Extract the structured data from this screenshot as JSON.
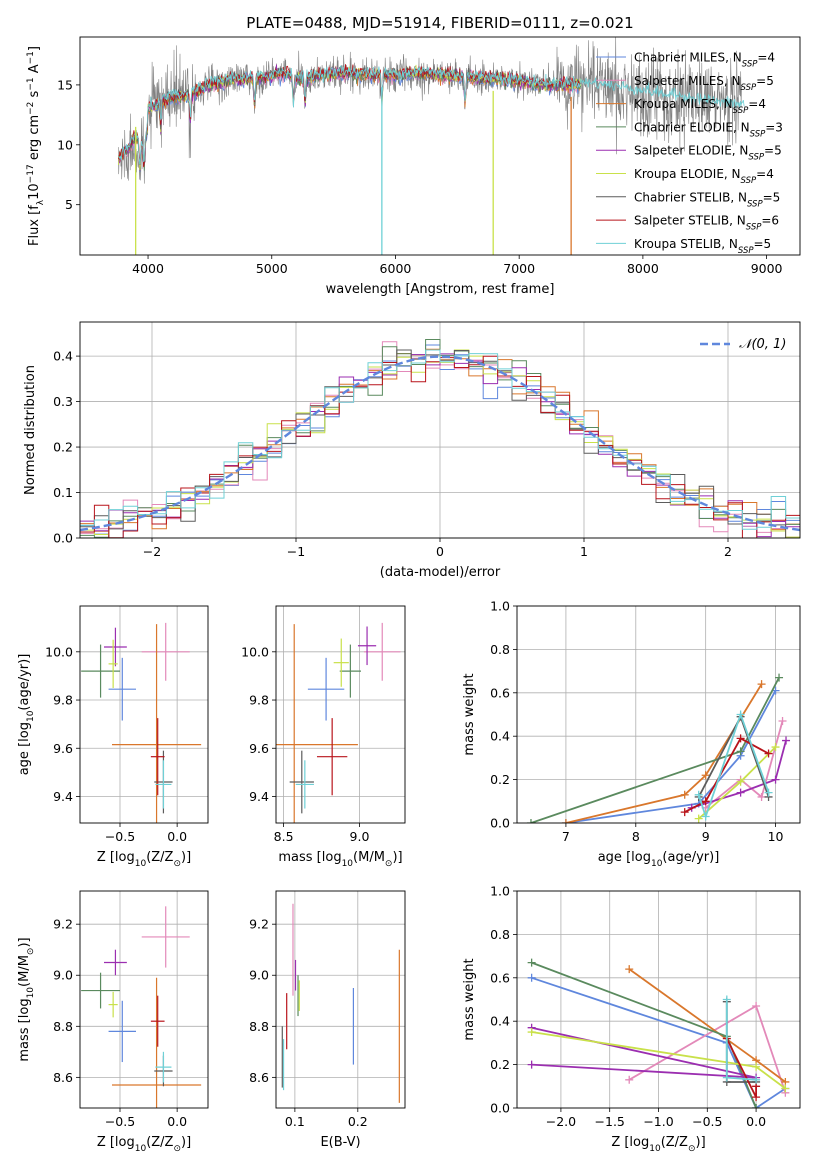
{
  "colors": {
    "chabrier_miles": "#5f87dd",
    "salpeter_miles": "#e389b9",
    "kroupa_miles": "#d9772c",
    "chabrier_elodie": "#5a8a5e",
    "salpeter_elodie": "#9b2eb0",
    "kroupa_elodie": "#c9e14a",
    "chabrier_stelib": "#5c5c5c",
    "salpeter_stelib": "#b8141b",
    "kroupa_stelib": "#6fd0d6",
    "grid": "#b0b0b0",
    "normal_curve": "#5f87dd"
  },
  "chart_data": [
    {
      "id": "spectrum",
      "type": "line",
      "title": "PLATE=0488, MJD=51914, FIBERID=0111, z=0.021",
      "xlabel": "wavelength [Angstrom, rest frame]",
      "ylabel": "Flux [f$_\\lambda$10$^{-17}$ erg cm$^{-2}$ s$^{-1}$ A$^{-1}$]",
      "ylabel_parts": [
        "Flux [f",
        "λ",
        "10",
        "−17",
        " erg cm",
        "−2",
        " s",
        "−1",
        " A",
        "−1",
        "]"
      ],
      "xlim": [
        3450,
        9270
      ],
      "ylim": [
        0.8,
        19.0
      ],
      "xticks": [
        4000,
        5000,
        6000,
        7000,
        8000,
        9000
      ],
      "yticks": [
        5,
        10,
        15
      ],
      "grid": false,
      "legend_position": "top-right",
      "series": [
        {
          "name": "Chabrier MILES, N",
          "sub": "SSP",
          "suffix": "=4",
          "color_key": "chabrier_miles"
        },
        {
          "name": "Salpeter MILES, N",
          "sub": "SSP",
          "suffix": "=5",
          "color_key": "salpeter_miles"
        },
        {
          "name": "Kroupa MILES, N",
          "sub": "SSP",
          "suffix": "=4",
          "color_key": "kroupa_miles"
        },
        {
          "name": "Chabrier ELODIE, N",
          "sub": "SSP",
          "suffix": "=3",
          "color_key": "chabrier_elodie"
        },
        {
          "name": "Salpeter ELODIE, N",
          "sub": "SSP",
          "suffix": "=5",
          "color_key": "salpeter_elodie"
        },
        {
          "name": "Kroupa ELODIE, N",
          "sub": "SSP",
          "suffix": "=4",
          "color_key": "kroupa_elodie"
        },
        {
          "name": "Chabrier STELIB, N",
          "sub": "SSP",
          "suffix": "=5",
          "color_key": "chabrier_stelib"
        },
        {
          "name": "Salpeter STELIB, N",
          "sub": "SSP",
          "suffix": "=6",
          "color_key": "salpeter_stelib"
        },
        {
          "name": "Kroupa STELIB, N",
          "sub": "SSP",
          "suffix": "=5",
          "color_key": "kroupa_stelib"
        }
      ],
      "observed_envelope": [
        [
          3760,
          10.5
        ],
        [
          3800,
          11.0
        ],
        [
          3850,
          11.5
        ],
        [
          3900,
          12.5
        ],
        [
          3950,
          11.5
        ],
        [
          4000,
          13.0
        ],
        [
          4100,
          13.5
        ],
        [
          4200,
          14.0
        ],
        [
          4300,
          14.0
        ],
        [
          4400,
          14.5
        ],
        [
          4500,
          15.0
        ],
        [
          4700,
          15.5
        ],
        [
          4900,
          15.5
        ],
        [
          5100,
          16.0
        ],
        [
          5200,
          15.5
        ],
        [
          5400,
          15.8
        ],
        [
          5600,
          16.0
        ],
        [
          5800,
          15.8
        ],
        [
          6000,
          15.8
        ],
        [
          6200,
          16.0
        ],
        [
          6400,
          15.8
        ],
        [
          6600,
          15.6
        ],
        [
          6800,
          15.5
        ],
        [
          7000,
          15.3
        ],
        [
          7200,
          15.0
        ],
        [
          7400,
          15.0
        ],
        [
          7600,
          15.0
        ],
        [
          7800,
          14.7
        ],
        [
          8000,
          14.4
        ],
        [
          8200,
          14.0
        ],
        [
          8400,
          13.8
        ],
        [
          8600,
          13.4
        ],
        [
          8800,
          13.2
        ]
      ]
    },
    {
      "id": "residuals",
      "type": "line",
      "xlabel": "(data-model)/error",
      "ylabel": "Normed distribution",
      "xlim": [
        -2.5,
        2.5
      ],
      "ylim": [
        0.0,
        0.475
      ],
      "xticks": [
        -2,
        -1,
        0,
        1,
        2
      ],
      "yticks": [
        0.0,
        0.1,
        0.2,
        0.3,
        0.4
      ],
      "grid": true,
      "legend_position": "top-right",
      "legend_label": "𝒩(0, 1)",
      "bin_width": 0.1,
      "normal_curve": {
        "mean": 0,
        "sigma": 1
      }
    },
    {
      "id": "age_vs_Z",
      "type": "scatter",
      "xlabel": "Z [log$_{10}$(Z/Z$_\\odot$)]",
      "ylabel": "age  [log$_{10}$(age/yr)]",
      "xlim": [
        -0.85,
        0.27
      ],
      "ylim": [
        9.29,
        10.19
      ],
      "xticks": [
        -0.5,
        0.0
      ],
      "yticks": [
        9.4,
        9.6,
        9.8,
        10.0
      ],
      "grid": true,
      "points": [
        {
          "key": "chabrier_miles",
          "x": -0.48,
          "y": 9.845,
          "xerr": 0.12,
          "yerr": 0.13
        },
        {
          "key": "salpeter_miles",
          "x": -0.1,
          "y": 10.0,
          "xerr": 0.21,
          "yerr": 0.12
        },
        {
          "key": "kroupa_miles",
          "x": -0.18,
          "y": 9.615,
          "xerr": 0.39,
          "yerr": 0.5
        },
        {
          "key": "chabrier_elodie",
          "x": -0.67,
          "y": 9.92,
          "xerr": 0.17,
          "yerr": 0.11
        },
        {
          "key": "salpeter_elodie",
          "x": -0.54,
          "y": 10.02,
          "xerr": 0.1,
          "yerr": 0.08
        },
        {
          "key": "kroupa_elodie",
          "x": -0.56,
          "y": 9.95,
          "xerr": 0.04,
          "yerr": 0.1
        },
        {
          "key": "chabrier_stelib",
          "x": -0.12,
          "y": 9.46,
          "xerr": 0.08,
          "yerr": 0.13
        },
        {
          "key": "salpeter_stelib",
          "x": -0.17,
          "y": 9.565,
          "xerr": 0.06,
          "yerr": 0.16
        },
        {
          "key": "kroupa_stelib",
          "x": -0.12,
          "y": 9.45,
          "xerr": 0.07,
          "yerr": 0.1
        }
      ]
    },
    {
      "id": "age_vs_mass",
      "type": "scatter",
      "xlabel": "mass [log$_{10}$(M/M$_\\odot$)]",
      "ylabel": "",
      "xlim": [
        8.45,
        9.3
      ],
      "ylim": [
        9.29,
        10.19
      ],
      "xticks": [
        8.5,
        9.0
      ],
      "yticks": [
        9.4,
        9.6,
        9.8,
        10.0
      ],
      "grid": true,
      "points": [
        {
          "key": "chabrier_miles",
          "x": 8.78,
          "y": 9.845,
          "xerr": 0.12,
          "yerr": 0.13
        },
        {
          "key": "salpeter_miles",
          "x": 9.15,
          "y": 10.0,
          "xerr": 0.12,
          "yerr": 0.12
        },
        {
          "key": "kroupa_miles",
          "x": 8.57,
          "y": 9.615,
          "xerr": 0.42,
          "yerr": 0.5
        },
        {
          "key": "chabrier_elodie",
          "x": 8.94,
          "y": 9.92,
          "xerr": 0.07,
          "yerr": 0.11
        },
        {
          "key": "salpeter_elodie",
          "x": 9.05,
          "y": 10.025,
          "xerr": 0.06,
          "yerr": 0.08
        },
        {
          "key": "kroupa_elodie",
          "x": 8.88,
          "y": 9.955,
          "xerr": 0.05,
          "yerr": 0.1
        },
        {
          "key": "chabrier_stelib",
          "x": 8.62,
          "y": 9.46,
          "xerr": 0.08,
          "yerr": 0.13
        },
        {
          "key": "salpeter_stelib",
          "x": 8.82,
          "y": 9.565,
          "xerr": 0.1,
          "yerr": 0.16
        },
        {
          "key": "kroupa_stelib",
          "x": 8.64,
          "y": 9.45,
          "xerr": 0.06,
          "yerr": 0.1
        }
      ]
    },
    {
      "id": "weight_vs_age",
      "type": "line",
      "xlabel": "age  [log$_{10}$(age/yr)]",
      "ylabel": "mass weight",
      "xlim": [
        6.3,
        10.35
      ],
      "ylim": [
        0.0,
        1.0
      ],
      "xticks": [
        7,
        8,
        9,
        10
      ],
      "yticks": [
        0.0,
        0.2,
        0.4,
        0.6,
        0.8,
        1.0
      ],
      "grid": true,
      "series": [
        {
          "key": "chabrier_miles",
          "pts": [
            [
              7.0,
              0.0
            ],
            [
              8.9,
              0.09
            ],
            [
              9.5,
              0.31
            ],
            [
              10.0,
              0.61
            ]
          ]
        },
        {
          "key": "salpeter_miles",
          "pts": [
            [
              9.0,
              0.07
            ],
            [
              9.5,
              0.2
            ],
            [
              9.8,
              0.12
            ],
            [
              10.1,
              0.47
            ]
          ]
        },
        {
          "key": "kroupa_miles",
          "pts": [
            [
              7.0,
              0.0
            ],
            [
              8.7,
              0.13
            ],
            [
              9.0,
              0.22
            ],
            [
              9.8,
              0.64
            ]
          ]
        },
        {
          "key": "chabrier_elodie",
          "pts": [
            [
              6.5,
              0.0
            ],
            [
              9.5,
              0.33
            ],
            [
              10.05,
              0.67
            ]
          ]
        },
        {
          "key": "salpeter_elodie",
          "pts": [
            [
              8.8,
              0.07
            ],
            [
              9.5,
              0.14
            ],
            [
              10.0,
              0.2
            ],
            [
              10.15,
              0.38
            ]
          ]
        },
        {
          "key": "kroupa_elodie",
          "pts": [
            [
              8.9,
              0.02
            ],
            [
              9.5,
              0.19
            ],
            [
              10.0,
              0.35
            ]
          ]
        },
        {
          "key": "chabrier_stelib",
          "pts": [
            [
              8.9,
              0.12
            ],
            [
              9.5,
              0.49
            ],
            [
              9.9,
              0.12
            ]
          ]
        },
        {
          "key": "salpeter_stelib",
          "pts": [
            [
              8.7,
              0.05
            ],
            [
              9.0,
              0.1
            ],
            [
              9.5,
              0.39
            ],
            [
              9.9,
              0.32
            ]
          ]
        },
        {
          "key": "kroupa_stelib",
          "pts": [
            [
              8.9,
              0.13
            ],
            [
              9.0,
              0.03
            ],
            [
              9.5,
              0.5
            ],
            [
              9.9,
              0.14
            ]
          ]
        }
      ]
    },
    {
      "id": "mass_vs_Z",
      "type": "scatter",
      "xlabel": "Z [log$_{10}$(Z/Z$_\\odot$)]",
      "ylabel": "mass [log$_{10}$(M/M$_\\odot$)]",
      "xlim": [
        -0.85,
        0.27
      ],
      "ylim": [
        8.48,
        9.33
      ],
      "xticks": [
        -0.5,
        0.0
      ],
      "yticks": [
        8.6,
        8.8,
        9.0,
        9.2
      ],
      "grid": true,
      "points": [
        {
          "key": "chabrier_miles",
          "x": -0.48,
          "y": 8.78,
          "xerr": 0.12,
          "yerr": 0.12
        },
        {
          "key": "salpeter_miles",
          "x": -0.1,
          "y": 9.15,
          "xerr": 0.21,
          "yerr": 0.12
        },
        {
          "key": "kroupa_miles",
          "x": -0.18,
          "y": 8.57,
          "xerr": 0.39,
          "yerr": 0.42
        },
        {
          "key": "chabrier_elodie",
          "x": -0.67,
          "y": 8.94,
          "xerr": 0.17,
          "yerr": 0.07
        },
        {
          "key": "salpeter_elodie",
          "x": -0.54,
          "y": 9.05,
          "xerr": 0.1,
          "yerr": 0.05
        },
        {
          "key": "kroupa_elodie",
          "x": -0.56,
          "y": 8.885,
          "xerr": 0.04,
          "yerr": 0.05
        },
        {
          "key": "chabrier_stelib",
          "x": -0.12,
          "y": 8.625,
          "xerr": 0.08,
          "yerr": 0.06
        },
        {
          "key": "salpeter_stelib",
          "x": -0.17,
          "y": 8.82,
          "xerr": 0.06,
          "yerr": 0.1
        },
        {
          "key": "kroupa_stelib",
          "x": -0.12,
          "y": 8.64,
          "xerr": 0.07,
          "yerr": 0.06
        }
      ]
    },
    {
      "id": "mass_vs_ebv",
      "type": "scatter",
      "xlabel": "E(B-V)",
      "ylabel": "",
      "xlim": [
        0.07,
        0.275
      ],
      "ylim": [
        8.48,
        9.33
      ],
      "xticks": [
        0.1,
        0.2
      ],
      "yticks": [
        8.6,
        8.8,
        9.0,
        9.2
      ],
      "grid": true,
      "points": [
        {
          "key": "chabrier_miles",
          "x": 0.193,
          "y": 8.8,
          "xerr": 0.0,
          "yerr": 0.15
        },
        {
          "key": "salpeter_miles",
          "x": 0.097,
          "y": 9.1,
          "xerr": 0.0,
          "yerr": 0.18
        },
        {
          "key": "kroupa_miles",
          "x": 0.266,
          "y": 8.8,
          "xerr": 0.0,
          "yerr": 0.3
        },
        {
          "key": "chabrier_elodie",
          "x": 0.105,
          "y": 8.92,
          "xerr": 0.0,
          "yerr": 0.08
        },
        {
          "key": "salpeter_elodie",
          "x": 0.101,
          "y": 9.0,
          "xerr": 0.0,
          "yerr": 0.06
        },
        {
          "key": "kroupa_elodie",
          "x": 0.107,
          "y": 8.92,
          "xerr": 0.0,
          "yerr": 0.06
        },
        {
          "key": "chabrier_stelib",
          "x": 0.08,
          "y": 8.68,
          "xerr": 0.0,
          "yerr": 0.12
        },
        {
          "key": "salpeter_stelib",
          "x": 0.087,
          "y": 8.82,
          "xerr": 0.0,
          "yerr": 0.11
        },
        {
          "key": "kroupa_stelib",
          "x": 0.082,
          "y": 8.65,
          "xerr": 0.0,
          "yerr": 0.1
        }
      ]
    },
    {
      "id": "weight_vs_Z",
      "type": "line",
      "xlabel": "Z [log$_{10}$(Z/Z$_\\odot$)]",
      "ylabel": "mass weight",
      "xlim": [
        -2.45,
        0.45
      ],
      "ylim": [
        0.0,
        1.0
      ],
      "xticks": [
        -2.0,
        -1.5,
        -1.0,
        -0.5,
        0.0
      ],
      "yticks": [
        0.0,
        0.2,
        0.4,
        0.6,
        0.8,
        1.0
      ],
      "grid": true,
      "series": [
        {
          "key": "chabrier_miles",
          "pts": [
            [
              -2.3,
              0.6
            ],
            [
              -0.3,
              0.3
            ],
            [
              0.0,
              0.0
            ],
            [
              0.3,
              0.09
            ]
          ]
        },
        {
          "key": "salpeter_miles",
          "pts": [
            [
              -1.3,
              0.13
            ],
            [
              0.0,
              0.47
            ],
            [
              0.3,
              0.07
            ]
          ]
        },
        {
          "key": "kroupa_miles",
          "pts": [
            [
              -1.3,
              0.64
            ],
            [
              0.0,
              0.22
            ],
            [
              0.3,
              0.12
            ]
          ]
        },
        {
          "key": "chabrier_elodie",
          "pts": [
            [
              -2.3,
              0.67
            ],
            [
              -0.3,
              0.33
            ],
            [
              0.0,
              0.0
            ]
          ]
        },
        {
          "key": "salpeter_elodie",
          "pts": [
            [
              -2.3,
              0.2
            ],
            [
              0.0,
              0.14
            ],
            [
              -2.3,
              0.37
            ]
          ]
        },
        {
          "key": "kroupa_elodie",
          "pts": [
            [
              -2.3,
              0.35
            ],
            [
              0.0,
              0.19
            ],
            [
              0.3,
              0.09
            ]
          ]
        },
        {
          "key": "chabrier_stelib",
          "pts": [
            [
              -0.3,
              0.49
            ],
            [
              -0.3,
              0.12
            ],
            [
              0.0,
              0.12
            ]
          ]
        },
        {
          "key": "salpeter_stelib",
          "pts": [
            [
              -0.3,
              0.32
            ],
            [
              0.0,
              0.05
            ],
            [
              0.0,
              0.1
            ]
          ]
        },
        {
          "key": "kroupa_stelib",
          "pts": [
            [
              -0.3,
              0.5
            ],
            [
              -0.3,
              0.14
            ],
            [
              0.0,
              0.13
            ]
          ]
        }
      ]
    }
  ]
}
